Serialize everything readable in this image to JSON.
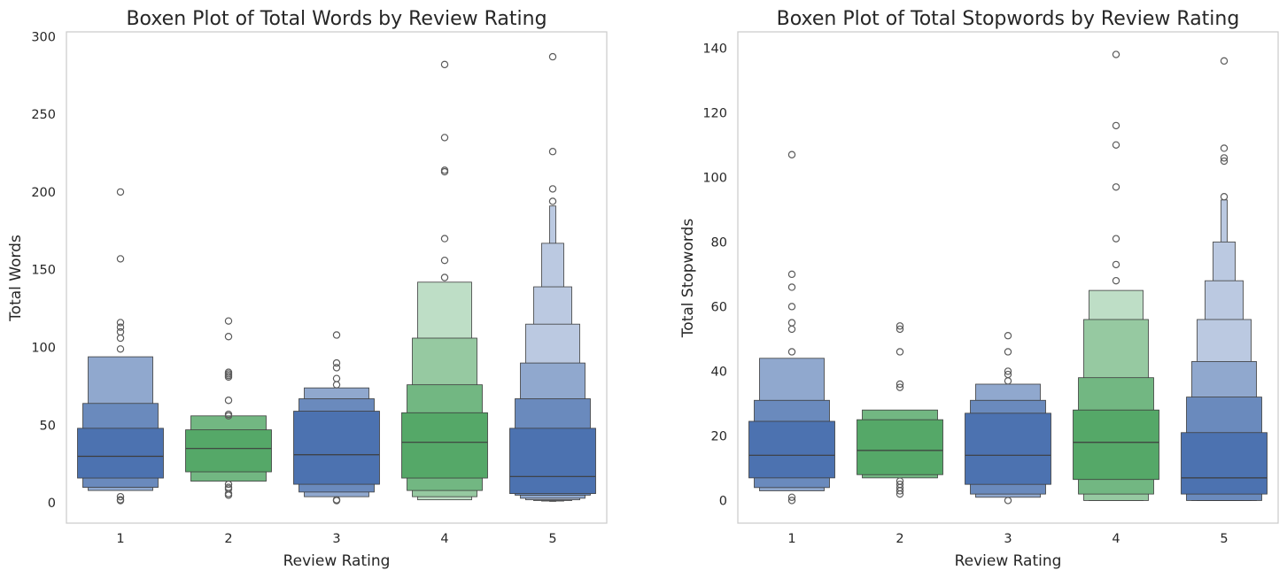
{
  "chart_data": [
    {
      "type": "boxen",
      "title": "Boxen Plot of Total Words by Review Rating",
      "xlabel": "Review Rating",
      "ylabel": "Total Words",
      "categories": [
        "1",
        "2",
        "3",
        "4",
        "5"
      ],
      "ylim": [
        -13,
        303
      ],
      "yticks": [
        0,
        50,
        100,
        150,
        200,
        250,
        300
      ],
      "grid": false,
      "groups": [
        {
          "category": "1",
          "color": "#4c72b0",
          "median": 30,
          "levels": [
            [
              16,
              48
            ],
            [
              10,
              64
            ],
            [
              8,
              94
            ]
          ],
          "outliers": [
            200,
            157,
            116,
            113,
            110,
            106,
            99,
            4,
            2,
            1.5
          ]
        },
        {
          "category": "2",
          "color": "#55a868",
          "median": 35,
          "levels": [
            [
              20,
              47
            ],
            [
              14,
              56
            ]
          ],
          "outliers": [
            117,
            107,
            84,
            83,
            82,
            81,
            66,
            57,
            56,
            12,
            10,
            9,
            6,
            5
          ]
        },
        {
          "category": "3",
          "color": "#4c72b0",
          "median": 31,
          "levels": [
            [
              12,
              59
            ],
            [
              7,
              67
            ],
            [
              4,
              74
            ]
          ],
          "outliers": [
            108,
            90,
            87,
            80,
            76,
            2,
            1.5
          ]
        },
        {
          "category": "4",
          "color": "#55a868",
          "median": 39,
          "levels": [
            [
              16,
              58
            ],
            [
              8,
              76
            ],
            [
              4,
              106
            ],
            [
              2,
              142
            ]
          ],
          "outliers": [
            282,
            235,
            214,
            213,
            170,
            156,
            145
          ]
        },
        {
          "category": "5",
          "color": "#4c72b0",
          "median": 17,
          "levels": [
            [
              6,
              48
            ],
            [
              5,
              67
            ],
            [
              3,
              90
            ],
            [
              2,
              115
            ],
            [
              1.5,
              139
            ],
            [
              1.2,
              167
            ],
            [
              1,
              191
            ]
          ],
          "outliers": [
            287,
            226,
            202,
            194
          ]
        }
      ]
    },
    {
      "type": "boxen",
      "title": "Boxen Plot of Total Stopwords by Review Rating",
      "xlabel": "Review Rating",
      "ylabel": "Total Stopwords",
      "categories": [
        "1",
        "2",
        "3",
        "4",
        "5"
      ],
      "ylim": [
        -7,
        145
      ],
      "yticks": [
        0,
        20,
        40,
        60,
        80,
        100,
        120,
        140
      ],
      "grid": false,
      "groups": [
        {
          "category": "1",
          "color": "#4c72b0",
          "median": 14,
          "levels": [
            [
              7,
              24.5
            ],
            [
              4,
              31
            ],
            [
              3,
              44
            ]
          ],
          "outliers": [
            107,
            70,
            66,
            60,
            55,
            53,
            46,
            1,
            0
          ]
        },
        {
          "category": "2",
          "color": "#55a868",
          "median": 15.5,
          "levels": [
            [
              8,
              25
            ],
            [
              7,
              28
            ]
          ],
          "outliers": [
            54,
            53,
            46,
            36,
            35,
            6,
            5,
            4,
            3,
            2
          ]
        },
        {
          "category": "3",
          "color": "#4c72b0",
          "median": 14,
          "levels": [
            [
              5,
              27
            ],
            [
              2,
              31
            ],
            [
              1,
              36
            ]
          ],
          "outliers": [
            51,
            46,
            40,
            39,
            37,
            0
          ]
        },
        {
          "category": "4",
          "color": "#55a868",
          "median": 18,
          "levels": [
            [
              6.5,
              28
            ],
            [
              2,
              38
            ],
            [
              0,
              56
            ],
            [
              0,
              65
            ]
          ],
          "outliers": [
            138,
            116,
            110,
            97,
            81,
            73,
            68
          ]
        },
        {
          "category": "5",
          "color": "#4c72b0",
          "median": 7,
          "levels": [
            [
              2,
              21
            ],
            [
              0,
              32
            ],
            [
              0,
              43
            ],
            [
              0,
              56
            ],
            [
              0,
              68
            ],
            [
              0,
              80
            ],
            [
              0,
              93
            ]
          ],
          "outliers": [
            136,
            109,
            106,
            105,
            94
          ]
        }
      ]
    }
  ]
}
